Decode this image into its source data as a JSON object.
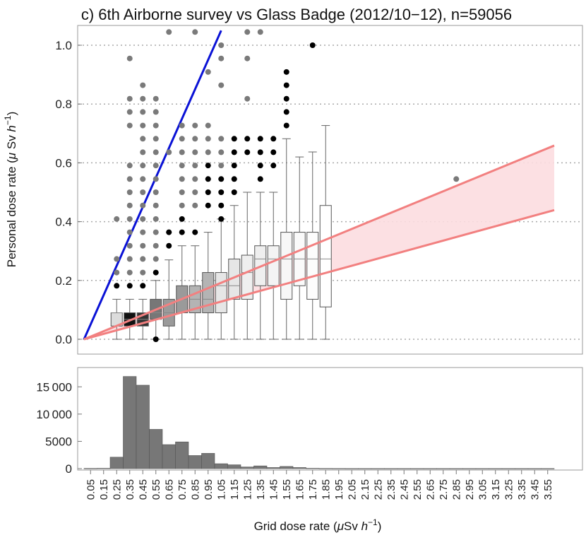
{
  "colors": {
    "identity_line": "#0a12d6",
    "band_line": "#f28080",
    "band_fill": "#fcdde0",
    "outlier_gray": "#7a7a7a",
    "outlier_black": "#000000",
    "hist_bar": "#777777",
    "grid": "#aaaaaa"
  },
  "chart_data": [
    {
      "type": "box",
      "title": "c) 6th Airborne survey vs Glass Badge (2012/10−12), n=59056",
      "ylabel_prefix": "Personal dose rate (",
      "ylabel_mu": "μ",
      "ylabel_unit": " Sv ",
      "ylabel_h": "h",
      "ylabel_exp": "−1",
      "ylabel_suffix": ")",
      "xlim": [
        0.0,
        3.6
      ],
      "ylim": [
        -0.06,
        1.05
      ],
      "yticks": [
        0.0,
        0.2,
        0.4,
        0.6,
        0.8,
        1.0
      ],
      "ytick_labels": [
        "0.0",
        "0.2",
        "0.4",
        "0.6",
        "0.8",
        "1.0"
      ],
      "grid": "horizontal dotted",
      "identity_line": {
        "slope": 1.0,
        "from": 0.0,
        "to": 1.05
      },
      "band": {
        "upper_slope": 0.183,
        "lower_slope": 0.122,
        "from": 0.0,
        "to": 3.6
      },
      "boxes": [
        {
          "x": 0.25,
          "q1": 0.045,
          "median": 0.09,
          "q3": 0.09,
          "wmin": 0.0,
          "wmax": 0.136,
          "shade": "#dcdcdc"
        },
        {
          "x": 0.35,
          "q1": 0.045,
          "median": 0.068,
          "q3": 0.09,
          "wmin": 0.0,
          "wmax": 0.136,
          "shade": "#111111"
        },
        {
          "x": 0.45,
          "q1": 0.045,
          "median": 0.068,
          "q3": 0.09,
          "wmin": 0.0,
          "wmax": 0.136,
          "shade": "#333333"
        },
        {
          "x": 0.55,
          "q1": 0.068,
          "median": 0.09,
          "q3": 0.136,
          "wmin": 0.0,
          "wmax": 0.2,
          "shade": "#777777"
        },
        {
          "x": 0.65,
          "q1": 0.045,
          "median": 0.09,
          "q3": 0.136,
          "wmin": 0.0,
          "wmax": 0.27,
          "shade": "#9a9a9a"
        },
        {
          "x": 0.75,
          "q1": 0.09,
          "median": 0.136,
          "q3": 0.182,
          "wmin": 0.0,
          "wmax": 0.318,
          "shade": "#9a9a9a"
        },
        {
          "x": 0.85,
          "q1": 0.09,
          "median": 0.136,
          "q3": 0.182,
          "wmin": 0.0,
          "wmax": 0.318,
          "shade": "#b4b4b4"
        },
        {
          "x": 0.95,
          "q1": 0.09,
          "median": 0.136,
          "q3": 0.227,
          "wmin": 0.0,
          "wmax": 0.364,
          "shade": "#b4b4b4"
        },
        {
          "x": 1.05,
          "q1": 0.09,
          "median": 0.182,
          "q3": 0.227,
          "wmin": 0.0,
          "wmax": 0.409,
          "shade": "#e6e6e6"
        },
        {
          "x": 1.15,
          "q1": 0.136,
          "median": 0.182,
          "q3": 0.273,
          "wmin": 0.0,
          "wmax": 0.455,
          "shade": "#e6e6e6"
        },
        {
          "x": 1.25,
          "q1": 0.136,
          "median": 0.227,
          "q3": 0.286,
          "wmin": 0.0,
          "wmax": 0.5,
          "shade": "#efefef"
        },
        {
          "x": 1.35,
          "q1": 0.182,
          "median": 0.273,
          "q3": 0.318,
          "wmin": 0.0,
          "wmax": 0.5,
          "shade": "#efefef"
        },
        {
          "x": 1.45,
          "q1": 0.182,
          "median": 0.273,
          "q3": 0.318,
          "wmin": 0.0,
          "wmax": 0.5,
          "shade": "#f4f4f4"
        },
        {
          "x": 1.55,
          "q1": 0.136,
          "median": 0.273,
          "q3": 0.364,
          "wmin": 0.0,
          "wmax": 0.682,
          "shade": "#f7f7f7"
        },
        {
          "x": 1.65,
          "q1": 0.182,
          "median": 0.273,
          "q3": 0.364,
          "wmin": 0.0,
          "wmax": 0.62,
          "shade": "#fafafa"
        },
        {
          "x": 1.75,
          "q1": 0.136,
          "median": 0.273,
          "q3": 0.364,
          "wmin": 0.0,
          "wmax": 0.637,
          "shade": "#fcfcfc"
        },
        {
          "x": 1.85,
          "q1": 0.11,
          "median": 0.273,
          "q3": 0.455,
          "wmin": 0.0,
          "wmax": 0.727,
          "shade": "#ffffff"
        }
      ],
      "outliers_gray": [
        [
          0.25,
          0.227
        ],
        [
          0.25,
          0.273
        ],
        [
          0.25,
          0.409
        ],
        [
          0.35,
          0.227
        ],
        [
          0.35,
          0.273
        ],
        [
          0.35,
          0.318
        ],
        [
          0.35,
          0.364
        ],
        [
          0.35,
          0.409
        ],
        [
          0.35,
          0.455
        ],
        [
          0.35,
          0.5
        ],
        [
          0.35,
          0.545
        ],
        [
          0.35,
          0.591
        ],
        [
          0.35,
          0.727
        ],
        [
          0.35,
          0.773
        ],
        [
          0.35,
          0.818
        ],
        [
          0.35,
          0.955
        ],
        [
          0.45,
          0.227
        ],
        [
          0.45,
          0.273
        ],
        [
          0.45,
          0.318
        ],
        [
          0.45,
          0.364
        ],
        [
          0.45,
          0.409
        ],
        [
          0.45,
          0.455
        ],
        [
          0.45,
          0.5
        ],
        [
          0.45,
          0.545
        ],
        [
          0.45,
          0.591
        ],
        [
          0.45,
          0.636
        ],
        [
          0.45,
          0.682
        ],
        [
          0.45,
          0.727
        ],
        [
          0.45,
          0.773
        ],
        [
          0.45,
          0.818
        ],
        [
          0.45,
          0.864
        ],
        [
          0.55,
          0.273
        ],
        [
          0.55,
          0.318
        ],
        [
          0.55,
          0.364
        ],
        [
          0.55,
          0.409
        ],
        [
          0.55,
          0.455
        ],
        [
          0.55,
          0.5
        ],
        [
          0.55,
          0.545
        ],
        [
          0.55,
          0.591
        ],
        [
          0.55,
          0.636
        ],
        [
          0.55,
          0.682
        ],
        [
          0.55,
          0.727
        ],
        [
          0.55,
          0.773
        ],
        [
          0.55,
          0.818
        ],
        [
          0.65,
          0.364
        ],
        [
          0.65,
          0.636
        ],
        [
          0.65,
          1.045
        ],
        [
          0.75,
          0.455
        ],
        [
          0.75,
          0.5
        ],
        [
          0.75,
          0.545
        ],
        [
          0.75,
          0.591
        ],
        [
          0.75,
          0.636
        ],
        [
          0.75,
          0.682
        ],
        [
          0.75,
          0.727
        ],
        [
          0.85,
          0.455
        ],
        [
          0.85,
          0.5
        ],
        [
          0.85,
          0.545
        ],
        [
          0.85,
          0.591
        ],
        [
          0.85,
          0.636
        ],
        [
          0.85,
          0.682
        ],
        [
          0.85,
          0.727
        ],
        [
          0.85,
          1.045
        ],
        [
          0.95,
          0.636
        ],
        [
          0.95,
          0.682
        ],
        [
          0.95,
          0.727
        ],
        [
          0.95,
          0.909
        ],
        [
          1.05,
          0.591
        ],
        [
          1.05,
          0.636
        ],
        [
          1.05,
          0.682
        ],
        [
          1.05,
          0.864
        ],
        [
          1.05,
          0.955
        ],
        [
          1.05,
          1.0
        ],
        [
          1.25,
          0.818
        ],
        [
          1.25,
          0.955
        ],
        [
          1.25,
          1.045
        ],
        [
          1.35,
          1.045
        ],
        [
          2.85,
          0.545
        ]
      ],
      "outliers_black": [
        [
          0.25,
          0.182
        ],
        [
          0.35,
          0.182
        ],
        [
          0.45,
          0.182
        ],
        [
          0.55,
          0.227
        ],
        [
          0.55,
          0.0
        ],
        [
          0.65,
          0.318
        ],
        [
          0.65,
          0.364
        ],
        [
          0.75,
          0.364
        ],
        [
          0.75,
          0.409
        ],
        [
          0.85,
          0.364
        ],
        [
          0.95,
          0.455
        ],
        [
          0.95,
          0.5
        ],
        [
          0.95,
          0.545
        ],
        [
          0.95,
          0.591
        ],
        [
          1.05,
          0.409
        ],
        [
          1.05,
          0.455
        ],
        [
          1.05,
          0.5
        ],
        [
          1.05,
          0.545
        ],
        [
          1.15,
          0.5
        ],
        [
          1.15,
          0.545
        ],
        [
          1.15,
          0.591
        ],
        [
          1.15,
          0.636
        ],
        [
          1.15,
          0.682
        ],
        [
          1.25,
          0.636
        ],
        [
          1.25,
          0.682
        ],
        [
          1.35,
          0.545
        ],
        [
          1.35,
          0.591
        ],
        [
          1.35,
          0.636
        ],
        [
          1.35,
          0.682
        ],
        [
          1.45,
          0.591
        ],
        [
          1.45,
          0.636
        ],
        [
          1.45,
          0.682
        ],
        [
          1.55,
          0.727
        ],
        [
          1.55,
          0.773
        ],
        [
          1.55,
          0.818
        ],
        [
          1.55,
          0.864
        ],
        [
          1.55,
          0.909
        ],
        [
          1.75,
          1.0
        ]
      ]
    },
    {
      "type": "bar",
      "xlabel_prefix": "Grid dose rate (",
      "xlabel_mu": "μ",
      "xlabel_unit": "Sv ",
      "xlabel_h": "h",
      "xlabel_exp": "−1",
      "xlabel_suffix": ")",
      "ylim": [
        0,
        17500
      ],
      "yticks": [
        0,
        5000,
        10000,
        15000
      ],
      "ytick_labels": [
        "0",
        "5000",
        "10 000",
        "15 000"
      ],
      "categories": [
        "0.05",
        "0.15",
        "0.25",
        "0.35",
        "0.45",
        "0.55",
        "0.65",
        "0.75",
        "0.85",
        "0.95",
        "1.05",
        "1.15",
        "1.25",
        "1.35",
        "1.45",
        "1.55",
        "1.65",
        "1.75",
        "1.85",
        "1.95",
        "2.05",
        "2.15",
        "2.25",
        "2.35",
        "2.45",
        "2.55",
        "2.65",
        "2.75",
        "2.85",
        "2.95",
        "3.05",
        "3.15",
        "3.25",
        "3.35",
        "3.45",
        "3.55"
      ],
      "values": [
        40,
        60,
        2100,
        16900,
        15300,
        7200,
        4400,
        4900,
        2400,
        2800,
        900,
        700,
        300,
        500,
        200,
        400,
        200,
        60,
        30,
        20,
        10,
        10,
        10,
        10,
        10,
        10,
        10,
        10,
        10,
        10,
        10,
        10,
        10,
        10,
        10,
        10
      ]
    }
  ]
}
